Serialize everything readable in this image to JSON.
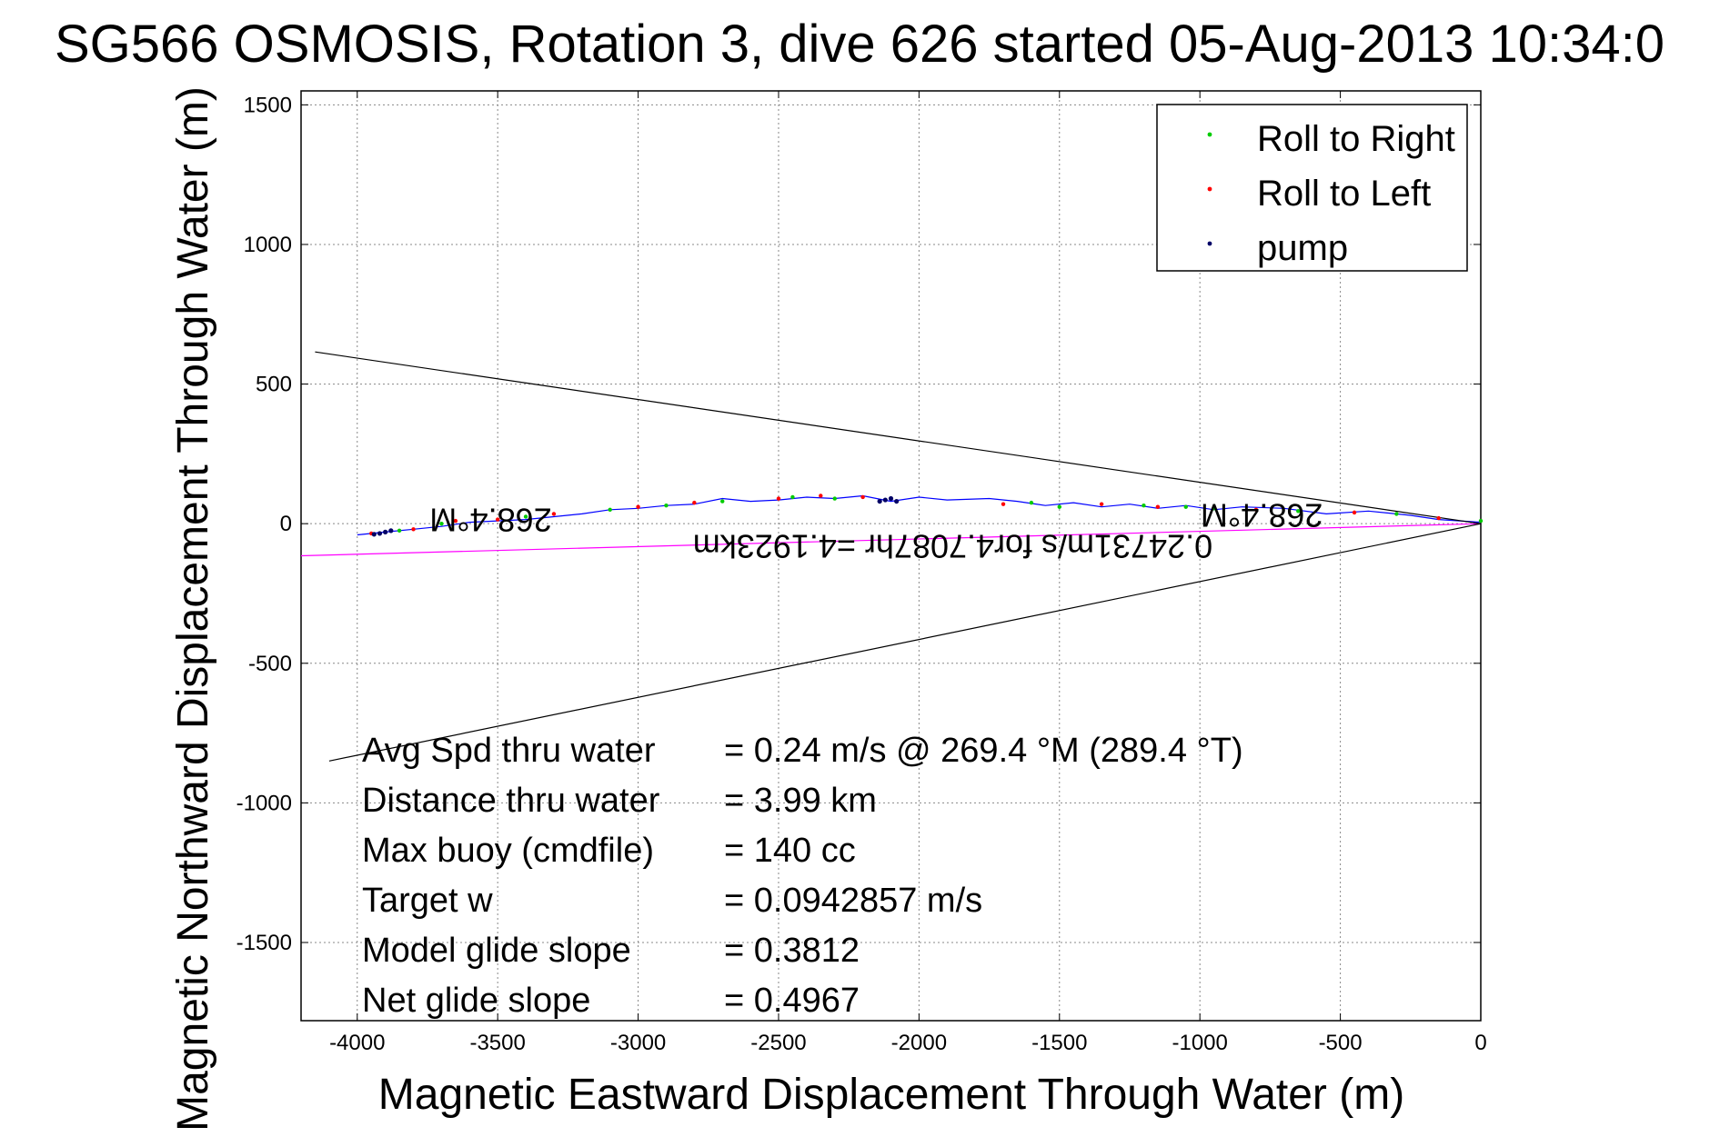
{
  "chart_data": {
    "type": "line",
    "title": "SG566 OSMOSIS, Rotation 3, dive 626 started 05-Aug-2013 10:34:0",
    "xlabel": "Magnetic Eastward Displacement Through Water (m)",
    "ylabel": "Magnetic Northward Displacement Through Water (m)",
    "xlim": [
      -4200,
      0
    ],
    "ylim": [
      -1780,
      1550
    ],
    "grid": true,
    "x_ticks": [
      -4000,
      -3500,
      -3000,
      -2500,
      -2000,
      -1500,
      -1000,
      -500,
      0
    ],
    "y_ticks": [
      -1500,
      -1000,
      -500,
      0,
      500,
      1000,
      1500
    ],
    "x_tick_labels": [
      "-4000",
      "-3500",
      "-3000",
      "-2500",
      "-2000",
      "-1500",
      "-1000",
      "-500",
      "0"
    ],
    "y_tick_labels": [
      "-1500",
      "-1000",
      "-500",
      "0",
      "500",
      "1000",
      "1500"
    ],
    "legend_position": "top-right",
    "legend": [
      {
        "name": "Roll to Right",
        "color": "#00cc00"
      },
      {
        "name": "Roll to Left",
        "color": "#ff0000"
      },
      {
        "name": "pump",
        "color": "#000066"
      }
    ],
    "series": [
      {
        "name": "track",
        "color": "#0000ff",
        "x": [
          0,
          -150,
          -250,
          -400,
          -550,
          -700,
          -850,
          -950,
          -1050,
          -1150,
          -1250,
          -1350,
          -1450,
          -1550,
          -1650,
          -1750,
          -1900,
          -2000,
          -2100,
          -2200,
          -2300,
          -2400,
          -2500,
          -2600,
          -2700,
          -2800,
          -2900,
          -3000,
          -3100,
          -3200,
          -3300,
          -3400,
          -3500,
          -3600,
          -3700,
          -3800,
          -3900,
          -4000
        ],
        "y": [
          5,
          15,
          30,
          45,
          35,
          55,
          60,
          50,
          65,
          55,
          70,
          60,
          75,
          65,
          80,
          90,
          85,
          95,
          80,
          100,
          90,
          95,
          85,
          80,
          90,
          70,
          65,
          55,
          50,
          35,
          25,
          15,
          10,
          5,
          -10,
          -20,
          -30,
          -40
        ]
      },
      {
        "name": "current",
        "color": "#ff00ff",
        "x": [
          0,
          -4200
        ],
        "y": [
          0,
          -115
        ]
      },
      {
        "name": "cone-upper",
        "color": "#000000",
        "x": [
          0,
          -4150
        ],
        "y": [
          0,
          615
        ]
      },
      {
        "name": "cone-lower",
        "color": "#000000",
        "x": [
          0,
          -4100
        ],
        "y": [
          0,
          -850
        ]
      }
    ],
    "markers": {
      "roll_right": {
        "x": [
          0,
          -300,
          -650,
          -950,
          -1050,
          -1200,
          -1500,
          -1600,
          -2300,
          -2450,
          -2700,
          -2900,
          -3100,
          -3400,
          -3700,
          -3850
        ],
        "y": [
          10,
          35,
          45,
          55,
          60,
          65,
          60,
          75,
          90,
          95,
          80,
          65,
          50,
          25,
          0,
          -25
        ]
      },
      "roll_left": {
        "x": [
          -150,
          -450,
          -800,
          -1150,
          -1350,
          -1700,
          -2200,
          -2350,
          -2500,
          -2800,
          -3000,
          -3300,
          -3500,
          -3650,
          -3800,
          -3950
        ],
        "y": [
          20,
          40,
          50,
          60,
          70,
          70,
          95,
          100,
          90,
          75,
          60,
          35,
          15,
          10,
          -20,
          -35
        ]
      },
      "pump": {
        "x": [
          -2080,
          -2100,
          -2120,
          -2140,
          -3880,
          -3900,
          -3920,
          -3940
        ],
        "y": [
          80,
          90,
          85,
          80,
          -25,
          -30,
          -35,
          -38
        ]
      }
    },
    "annotations": {
      "flipped_heading_right": "268.4°M",
      "flipped_heading_left": "268.4°M",
      "flipped_speed": "0.24731m/s for4.7087hr =4.1923km"
    },
    "stats": [
      {
        "label": "Avg Spd thru water",
        "value": "=  0.24 m/s @ 269.4 °M (289.4 °T)"
      },
      {
        "label": "Distance thru water",
        "value": "=  3.99 km"
      },
      {
        "label": "Max buoy (cmdfile)",
        "value": "= 140 cc"
      },
      {
        "label": "Target w",
        "value": "= 0.0942857 m/s"
      },
      {
        "label": "Model glide slope",
        "value": "= 0.3812"
      },
      {
        "label": "Net glide slope",
        "value": "= 0.4967"
      }
    ]
  }
}
